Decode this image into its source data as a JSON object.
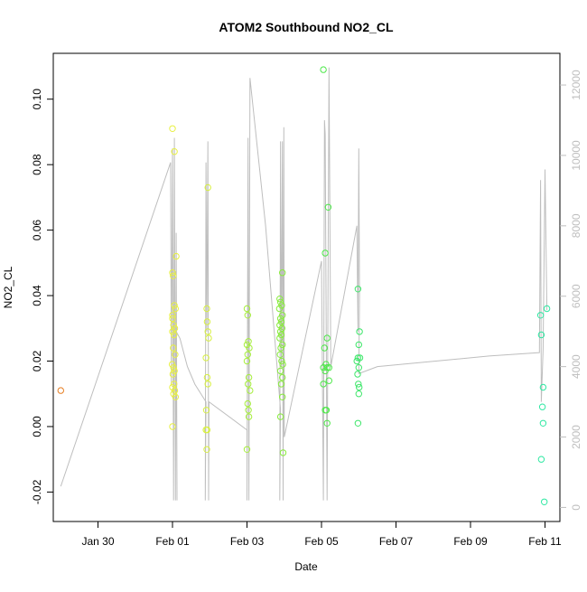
{
  "chart_data": {
    "type": "scatter",
    "title": "ATOM2 Southbound NO2_CL",
    "xlabel": "Date",
    "ylabel": "NO2_CL",
    "x_ticks": [
      "Jan 30",
      "Feb 01",
      "Feb 03",
      "Feb 05",
      "Feb 07",
      "Feb 09",
      "Feb 11"
    ],
    "x_tick_days": [
      0,
      2,
      4,
      6,
      8,
      10,
      12
    ],
    "x_range_days": [
      -1.2,
      12.4
    ],
    "y_ticks": [
      "-0.02",
      "0.00",
      "0.02",
      "0.04",
      "0.06",
      "0.08",
      "0.10"
    ],
    "ylim": [
      -0.029,
      0.114
    ],
    "y2_ticks": [
      "0",
      "2000",
      "4000",
      "6000",
      "8000",
      "10000",
      "12000"
    ],
    "y2lim": [
      -400,
      12900
    ],
    "grid": false,
    "axis_color": "#000000",
    "secondary_axis_color": "#bebebe",
    "series": [
      {
        "color": "#e67e22",
        "points": [
          [
            -1.0,
            0.011
          ]
        ]
      },
      {
        "color": "#e8f040",
        "points": [
          [
            2.0,
            0.091
          ],
          [
            2.05,
            0.084
          ],
          [
            2.0,
            0.047
          ],
          [
            2.02,
            0.046
          ],
          [
            2.1,
            0.052
          ],
          [
            2.05,
            0.037
          ],
          [
            2.08,
            0.036
          ],
          [
            2.0,
            0.034
          ],
          [
            2.03,
            0.031
          ],
          [
            2.06,
            0.03
          ],
          [
            2.0,
            0.029
          ],
          [
            2.04,
            0.028
          ],
          [
            2.02,
            0.024
          ],
          [
            2.07,
            0.022
          ],
          [
            1.99,
            0.019
          ],
          [
            2.03,
            0.018
          ],
          [
            2.05,
            0.017
          ],
          [
            2.01,
            0.016
          ],
          [
            2.04,
            0.013
          ],
          [
            2.0,
            0.012
          ],
          [
            2.06,
            0.011
          ],
          [
            2.03,
            0.01
          ],
          [
            2.08,
            0.009
          ],
          [
            2.0,
            0.0
          ],
          [
            2.0,
            0.033
          ]
        ]
      },
      {
        "color": "#d8f040",
        "points": [
          [
            2.95,
            0.073
          ],
          [
            2.92,
            0.036
          ],
          [
            2.93,
            0.032
          ],
          [
            2.95,
            0.029
          ],
          [
            2.97,
            0.027
          ],
          [
            2.9,
            0.021
          ],
          [
            2.93,
            0.015
          ],
          [
            2.95,
            0.013
          ],
          [
            2.91,
            0.005
          ],
          [
            2.9,
            -0.001
          ],
          [
            2.93,
            -0.001
          ],
          [
            2.92,
            -0.007
          ]
        ]
      },
      {
        "color": "#a6ee3c",
        "points": [
          [
            4.0,
            0.036
          ],
          [
            4.02,
            0.034
          ],
          [
            4.04,
            0.026
          ],
          [
            4.0,
            0.025
          ],
          [
            4.06,
            0.024
          ],
          [
            4.02,
            0.022
          ],
          [
            4.0,
            0.02
          ],
          [
            4.05,
            0.015
          ],
          [
            4.03,
            0.013
          ],
          [
            4.08,
            0.011
          ],
          [
            4.02,
            0.007
          ],
          [
            4.04,
            0.005
          ],
          [
            4.05,
            0.003
          ],
          [
            4.0,
            -0.007
          ]
        ]
      },
      {
        "color": "#88ec3c",
        "points": [
          [
            4.95,
            0.047
          ],
          [
            4.88,
            0.039
          ],
          [
            4.9,
            0.038
          ],
          [
            4.93,
            0.037
          ],
          [
            4.87,
            0.036
          ],
          [
            4.95,
            0.034
          ],
          [
            4.9,
            0.033
          ],
          [
            4.92,
            0.032
          ],
          [
            4.88,
            0.031
          ],
          [
            4.94,
            0.03
          ],
          [
            4.9,
            0.029
          ],
          [
            4.92,
            0.028
          ],
          [
            4.88,
            0.027
          ],
          [
            4.95,
            0.025
          ],
          [
            4.91,
            0.024
          ],
          [
            4.89,
            0.022
          ],
          [
            4.93,
            0.02
          ],
          [
            4.96,
            0.019
          ],
          [
            4.9,
            0.017
          ],
          [
            4.95,
            0.015
          ],
          [
            4.92,
            0.013
          ],
          [
            4.95,
            0.009
          ],
          [
            4.9,
            0.003
          ],
          [
            4.97,
            -0.008
          ]
        ]
      },
      {
        "color": "#4ee84a",
        "points": [
          [
            6.05,
            0.109
          ],
          [
            6.18,
            0.067
          ],
          [
            6.1,
            0.053
          ],
          [
            6.15,
            0.027
          ],
          [
            6.08,
            0.024
          ],
          [
            6.12,
            0.019
          ],
          [
            6.05,
            0.018
          ],
          [
            6.15,
            0.018
          ],
          [
            6.2,
            0.018
          ],
          [
            6.1,
            0.017
          ],
          [
            6.2,
            0.014
          ],
          [
            6.05,
            0.013
          ],
          [
            6.1,
            0.005
          ],
          [
            6.13,
            0.005
          ],
          [
            6.15,
            0.001
          ]
        ]
      },
      {
        "color": "#3ee66a",
        "points": [
          [
            6.98,
            0.042
          ],
          [
            7.02,
            0.029
          ],
          [
            7.0,
            0.025
          ],
          [
            6.98,
            0.021
          ],
          [
            7.03,
            0.021
          ],
          [
            6.95,
            0.02
          ],
          [
            7.0,
            0.018
          ],
          [
            6.97,
            0.016
          ],
          [
            6.99,
            0.013
          ],
          [
            7.01,
            0.012
          ],
          [
            7.0,
            0.01
          ],
          [
            6.98,
            0.001
          ]
        ]
      },
      {
        "color": "#2ee8a2",
        "points": [
          [
            11.88,
            0.034
          ],
          [
            12.05,
            0.036
          ],
          [
            11.9,
            0.028
          ],
          [
            11.95,
            0.012
          ],
          [
            11.93,
            0.006
          ],
          [
            11.95,
            0.001
          ],
          [
            11.9,
            -0.01
          ],
          [
            11.98,
            -0.023
          ]
        ]
      }
    ],
    "secondary_line": {
      "axis": "right",
      "color": "#bebebe",
      "points": [
        [
          -1.0,
          600
        ],
        [
          1.95,
          9800
        ],
        [
          1.97,
          3500
        ],
        [
          2.0,
          10200
        ],
        [
          2.03,
          200
        ],
        [
          2.05,
          10500
        ],
        [
          2.08,
          200
        ],
        [
          2.1,
          7800
        ],
        [
          2.12,
          200
        ],
        [
          2.1,
          5000
        ],
        [
          2.2,
          4800
        ],
        [
          2.4,
          4000
        ],
        [
          2.6,
          3500
        ],
        [
          2.9,
          3000
        ],
        [
          2.88,
          200
        ],
        [
          2.9,
          9800
        ],
        [
          2.92,
          5000
        ],
        [
          2.95,
          10400
        ],
        [
          2.97,
          200
        ],
        [
          2.98,
          3000
        ],
        [
          4.0,
          2200
        ],
        [
          4.0,
          200
        ],
        [
          4.03,
          10500
        ],
        [
          4.05,
          200
        ],
        [
          4.08,
          12200
        ],
        [
          4.5,
          8000
        ],
        [
          4.9,
          2800
        ],
        [
          4.88,
          200
        ],
        [
          4.9,
          10400
        ],
        [
          4.92,
          4000
        ],
        [
          4.95,
          10400
        ],
        [
          4.97,
          200
        ],
        [
          4.99,
          10800
        ],
        [
          5.0,
          2000
        ],
        [
          5.5,
          4500
        ],
        [
          6.0,
          7000
        ],
        [
          6.05,
          200
        ],
        [
          6.08,
          11000
        ],
        [
          6.1,
          10600
        ],
        [
          6.15,
          200
        ],
        [
          6.2,
          12500
        ],
        [
          6.25,
          4000
        ],
        [
          6.95,
          8000
        ],
        [
          6.98,
          5000
        ],
        [
          7.0,
          10200
        ],
        [
          7.02,
          6000
        ],
        [
          7.0,
          3800
        ],
        [
          7.5,
          4000
        ],
        [
          10.5,
          4300
        ],
        [
          11.85,
          4400
        ],
        [
          11.88,
          9300
        ],
        [
          11.9,
          3000
        ],
        [
          11.95,
          4500
        ],
        [
          12.0,
          9600
        ],
        [
          12.05,
          5600
        ]
      ]
    }
  }
}
